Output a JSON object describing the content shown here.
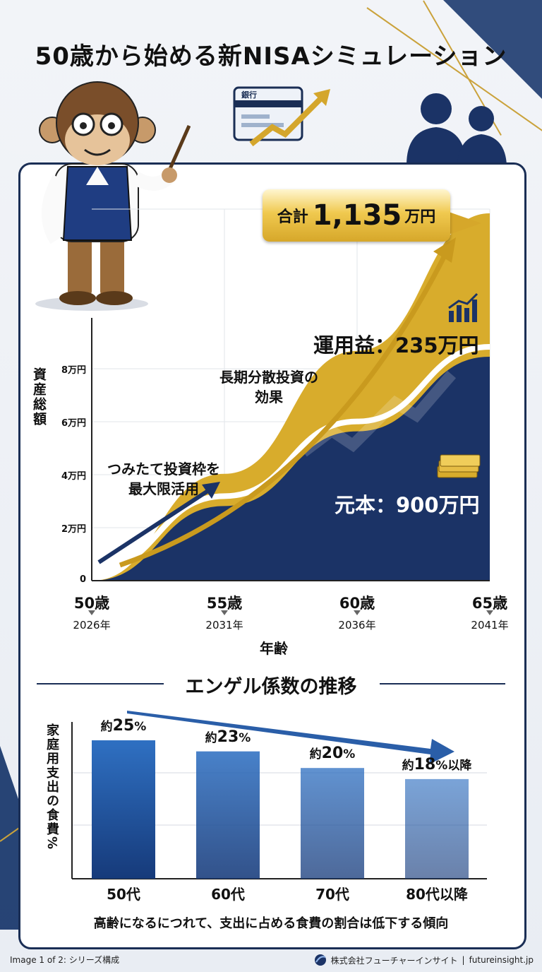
{
  "title": "50歳から始める新NISAシミュレーション",
  "bank_icon_text": "銀行",
  "chart_data": [
    {
      "type": "area",
      "ylabel": "資産総額",
      "xlabel": "年齢",
      "y_ticks": [
        "0",
        "2万円",
        "4万円",
        "6万円",
        "8万円"
      ],
      "x_ticks": [
        {
          "age": "50歳",
          "year": "2026年"
        },
        {
          "age": "55歳",
          "year": "2031年"
        },
        {
          "age": "60歳",
          "year": "2036年"
        },
        {
          "age": "65歳",
          "year": "2041年"
        }
      ],
      "x": [
        50,
        55,
        60,
        65
      ],
      "series": [
        {
          "name": "元本",
          "values": [
            0,
            300,
            600,
            900
          ]
        },
        {
          "name": "運用益",
          "values": [
            0,
            30,
            110,
            235
          ]
        }
      ],
      "total": {
        "pre": "合計",
        "value": "1,135",
        "unit": "万円"
      },
      "principal_label": "元本：900万円",
      "gain_label": "運用益：235万円",
      "annotations": [
        "長期分散投資の",
        "効果",
        "つみたて投資枠を",
        "最大限活用"
      ],
      "colors": {
        "principal": "#1b3366",
        "gain": "#d8ac2c",
        "arrow": "#1b3366"
      }
    },
    {
      "type": "bar",
      "title": "エンゲル係数の推移",
      "ylabel": "家庭用支出の食費%",
      "categories": [
        "50代",
        "60代",
        "70代",
        "80代以降"
      ],
      "values": [
        25,
        23,
        20,
        18
      ],
      "value_labels": [
        {
          "pre": "約",
          "num": "25",
          "suf": "%"
        },
        {
          "pre": "約",
          "num": "23",
          "suf": "%"
        },
        {
          "pre": "約",
          "num": "20",
          "suf": "%"
        },
        {
          "pre": "約",
          "num": "18",
          "suf": "%以降"
        }
      ],
      "caption": "高齢になるにつれて、支出に占める食費の割合は低下する傾向",
      "colors": {
        "bar_top": "#2f70c2",
        "bar_bottom": "#163a7a"
      }
    }
  ],
  "footer": {
    "left": "Image 1 of 2: シリーズ構成",
    "company": "株式会社フューチャーインサイト",
    "separator": "|",
    "site": "futureinsight.jp"
  }
}
